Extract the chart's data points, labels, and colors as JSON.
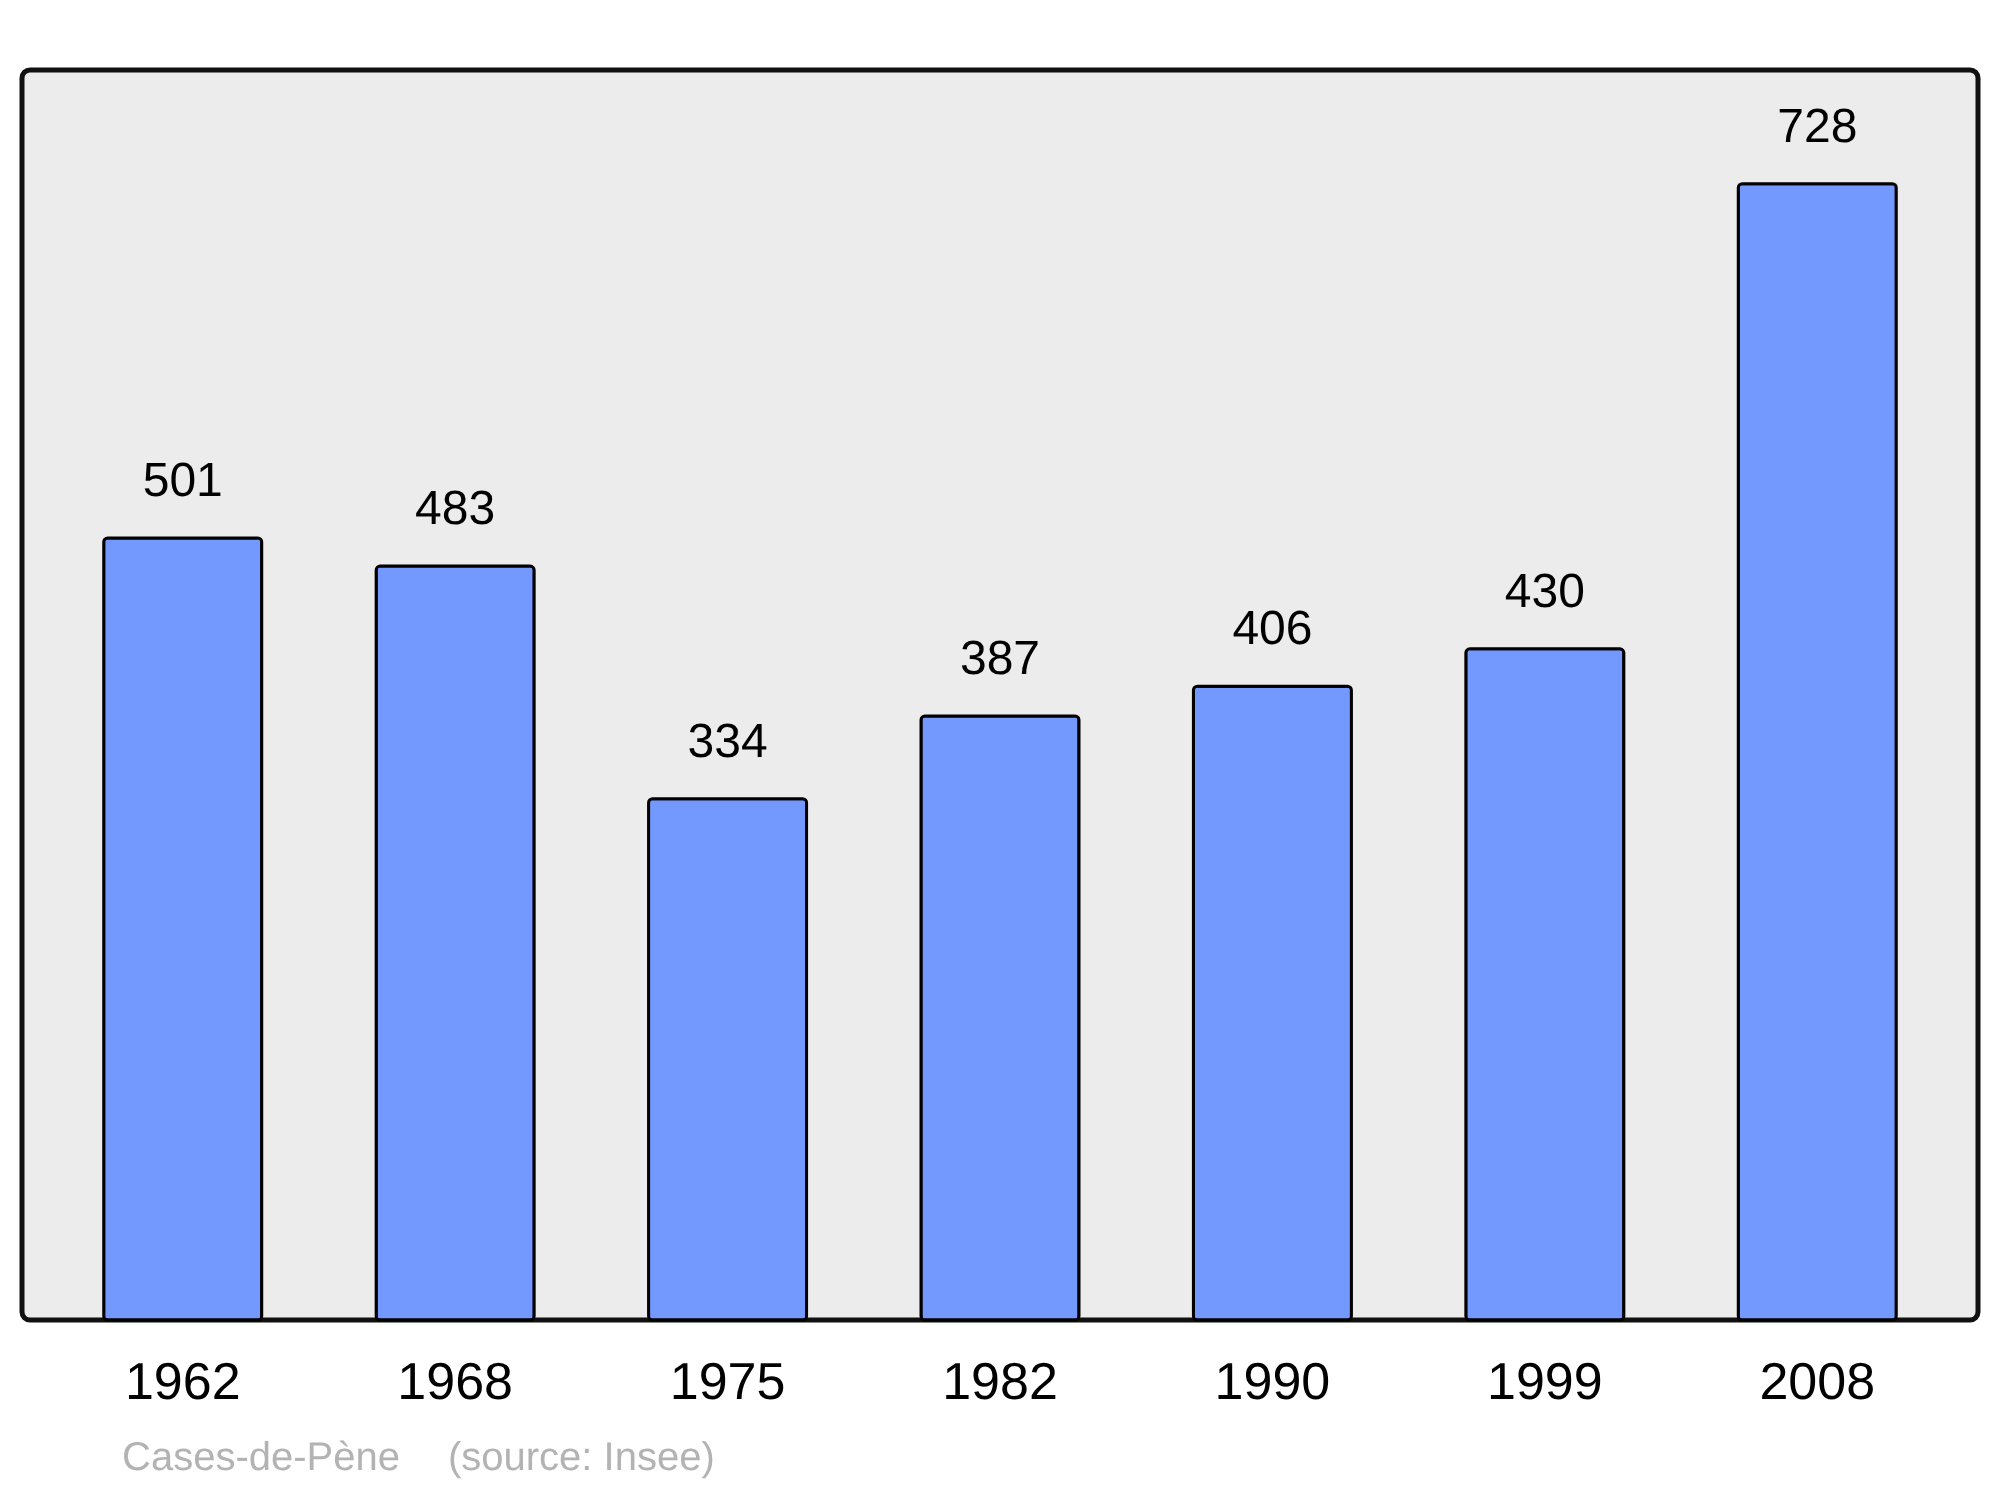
{
  "chart_data": {
    "type": "bar",
    "categories": [
      "1962",
      "1968",
      "1975",
      "1982",
      "1990",
      "1999",
      "2008"
    ],
    "values": [
      501,
      483,
      334,
      387,
      406,
      430,
      728
    ],
    "color": "#7399ff",
    "data_labels": true,
    "grid": false,
    "annotations": [
      "Cases-de-Pène",
      "(source: Insee)"
    ]
  }
}
